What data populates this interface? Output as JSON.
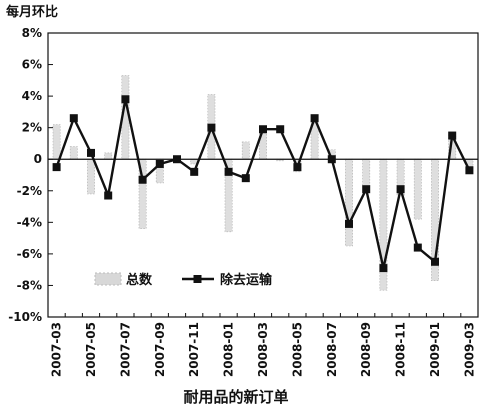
{
  "chart_data": {
    "type": "bar",
    "title": "耐用品的新订单",
    "ylabel": "每月环比",
    "ylim": [
      -10,
      8
    ],
    "yticks": [
      "8%",
      "6%",
      "4%",
      "2%",
      "0",
      "-2%",
      "-4%",
      "-6%",
      "-8%",
      "-10%"
    ],
    "ytick_values": [
      8,
      6,
      4,
      2,
      0,
      -2,
      -4,
      -6,
      -8,
      -10
    ],
    "xtick_labels": [
      "2007-03",
      "2007-05",
      "2007-07",
      "2007-09",
      "2007-11",
      "2008-01",
      "2008-03",
      "2008-05",
      "2008-07",
      "2008-09",
      "2008-11",
      "2009-01",
      "2009-03"
    ],
    "categories": [
      "2007-03",
      "2007-04",
      "2007-05",
      "2007-06",
      "2007-07",
      "2007-08",
      "2007-09",
      "2007-10",
      "2007-11",
      "2007-12",
      "2008-01",
      "2008-02",
      "2008-03",
      "2008-04",
      "2008-05",
      "2008-06",
      "2008-07",
      "2008-08",
      "2008-09",
      "2008-10",
      "2008-11",
      "2008-12",
      "2009-01",
      "2009-02",
      "2009-03"
    ],
    "series": [
      {
        "name": "总数",
        "render": "bar",
        "color": "#c8c8c8",
        "values": [
          2.2,
          0.8,
          -2.2,
          0.4,
          5.3,
          -4.4,
          -1.5,
          0.1,
          -0.3,
          4.1,
          -4.6,
          1.1,
          1.9,
          -0.1,
          -0.8,
          2.3,
          0.6,
          -5.5,
          -1.7,
          -8.3,
          -2.3,
          -3.8,
          -7.7,
          1.6,
          -0.5
        ]
      },
      {
        "name": "除去运输",
        "render": "line",
        "color": "#111111",
        "values": [
          -0.5,
          2.6,
          0.4,
          -2.3,
          3.8,
          -1.3,
          -0.3,
          0.0,
          -0.8,
          2.0,
          -0.8,
          -1.2,
          1.9,
          1.9,
          -0.5,
          2.6,
          0.0,
          -4.1,
          -1.9,
          -6.9,
          -1.9,
          -5.6,
          -6.5,
          1.5,
          -0.7
        ]
      }
    ],
    "legend": {
      "position": "lower-left",
      "entries": [
        "总数",
        "除去运输"
      ]
    },
    "grid": false
  }
}
